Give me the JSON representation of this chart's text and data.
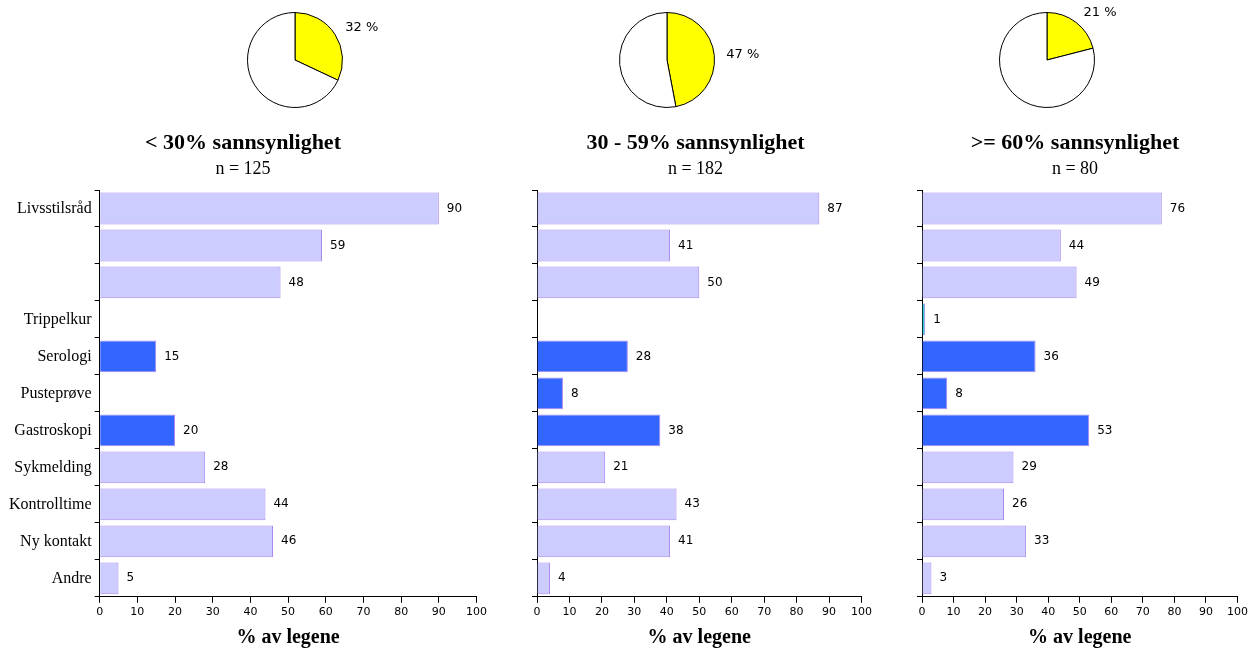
{
  "chart_data": [
    {
      "type": "pie",
      "categories": [
        null,
        null
      ],
      "values": [
        32,
        68
      ],
      "colors": [
        "#ffff00",
        "#ffffff"
      ],
      "value_labels": [
        "32 %",
        null
      ]
    },
    {
      "type": "bar",
      "orientation": "horizontal",
      "title": "< 30% sannsynlighet",
      "subtitle": "n = 125",
      "xlabel": "% av legene",
      "categories": [
        "Livsstilsråd",
        null,
        null,
        "Trippelkur",
        "Serologi",
        "Pusteprøve",
        "Gastroskopi",
        "Sykmelding",
        "Kontrolltime",
        "Ny kontakt",
        "Andre"
      ],
      "values": [
        90,
        59,
        48,
        null,
        15,
        null,
        20,
        28,
        44,
        46,
        5
      ],
      "colors": [
        "#ccccff",
        "#ccccff",
        "#ccccff",
        "#33ccdd",
        "#3366ff",
        "#3366ff",
        "#3366ff",
        "#ccccff",
        "#ccccff",
        "#ccccff",
        "#ccccff"
      ],
      "xlim": [
        0,
        100
      ],
      "xticks": [
        0,
        10,
        20,
        30,
        40,
        50,
        60,
        70,
        80,
        90,
        100
      ],
      "data_labels": true,
      "legend": false,
      "grid": false
    },
    {
      "type": "pie",
      "categories": [
        null,
        null
      ],
      "values": [
        47,
        53
      ],
      "colors": [
        "#ffff00",
        "#ffffff"
      ],
      "value_labels": [
        "47 %",
        null
      ]
    },
    {
      "type": "bar",
      "orientation": "horizontal",
      "title": "30 - 59% sannsynlighet",
      "subtitle": "n = 182",
      "xlabel": "% av legene",
      "categories": [
        null,
        null,
        null,
        null,
        null,
        null,
        null,
        null,
        null,
        null,
        null
      ],
      "values": [
        87,
        41,
        50,
        null,
        28,
        8,
        38,
        21,
        43,
        41,
        4
      ],
      "colors": [
        "#ccccff",
        "#ccccff",
        "#ccccff",
        "#33ccdd",
        "#3366ff",
        "#3366ff",
        "#3366ff",
        "#ccccff",
        "#ccccff",
        "#ccccff",
        "#ccccff"
      ],
      "xlim": [
        0,
        100
      ],
      "xticks": [
        0,
        10,
        20,
        30,
        40,
        50,
        60,
        70,
        80,
        90,
        100
      ],
      "data_labels": true,
      "legend": false,
      "grid": false
    },
    {
      "type": "pie",
      "categories": [
        null,
        null
      ],
      "values": [
        21,
        79
      ],
      "colors": [
        "#ffff00",
        "#ffffff"
      ],
      "value_labels": [
        "21 %",
        null
      ]
    },
    {
      "type": "bar",
      "orientation": "horizontal",
      "title": ">= 60% sannsynlighet",
      "subtitle": "n = 80",
      "xlabel": "% av legene",
      "categories": [
        null,
        null,
        null,
        null,
        null,
        null,
        null,
        null,
        null,
        null,
        null
      ],
      "values": [
        76,
        44,
        49,
        1,
        36,
        8,
        53,
        29,
        26,
        33,
        3
      ],
      "colors": [
        "#ccccff",
        "#ccccff",
        "#ccccff",
        "#33ccdd",
        "#3366ff",
        "#3366ff",
        "#3366ff",
        "#ccccff",
        "#ccccff",
        "#ccccff",
        "#ccccff"
      ],
      "xlim": [
        0,
        100
      ],
      "xticks": [
        0,
        10,
        20,
        30,
        40,
        50,
        60,
        70,
        80,
        90,
        100
      ],
      "data_labels": true,
      "legend": false,
      "grid": false
    }
  ]
}
